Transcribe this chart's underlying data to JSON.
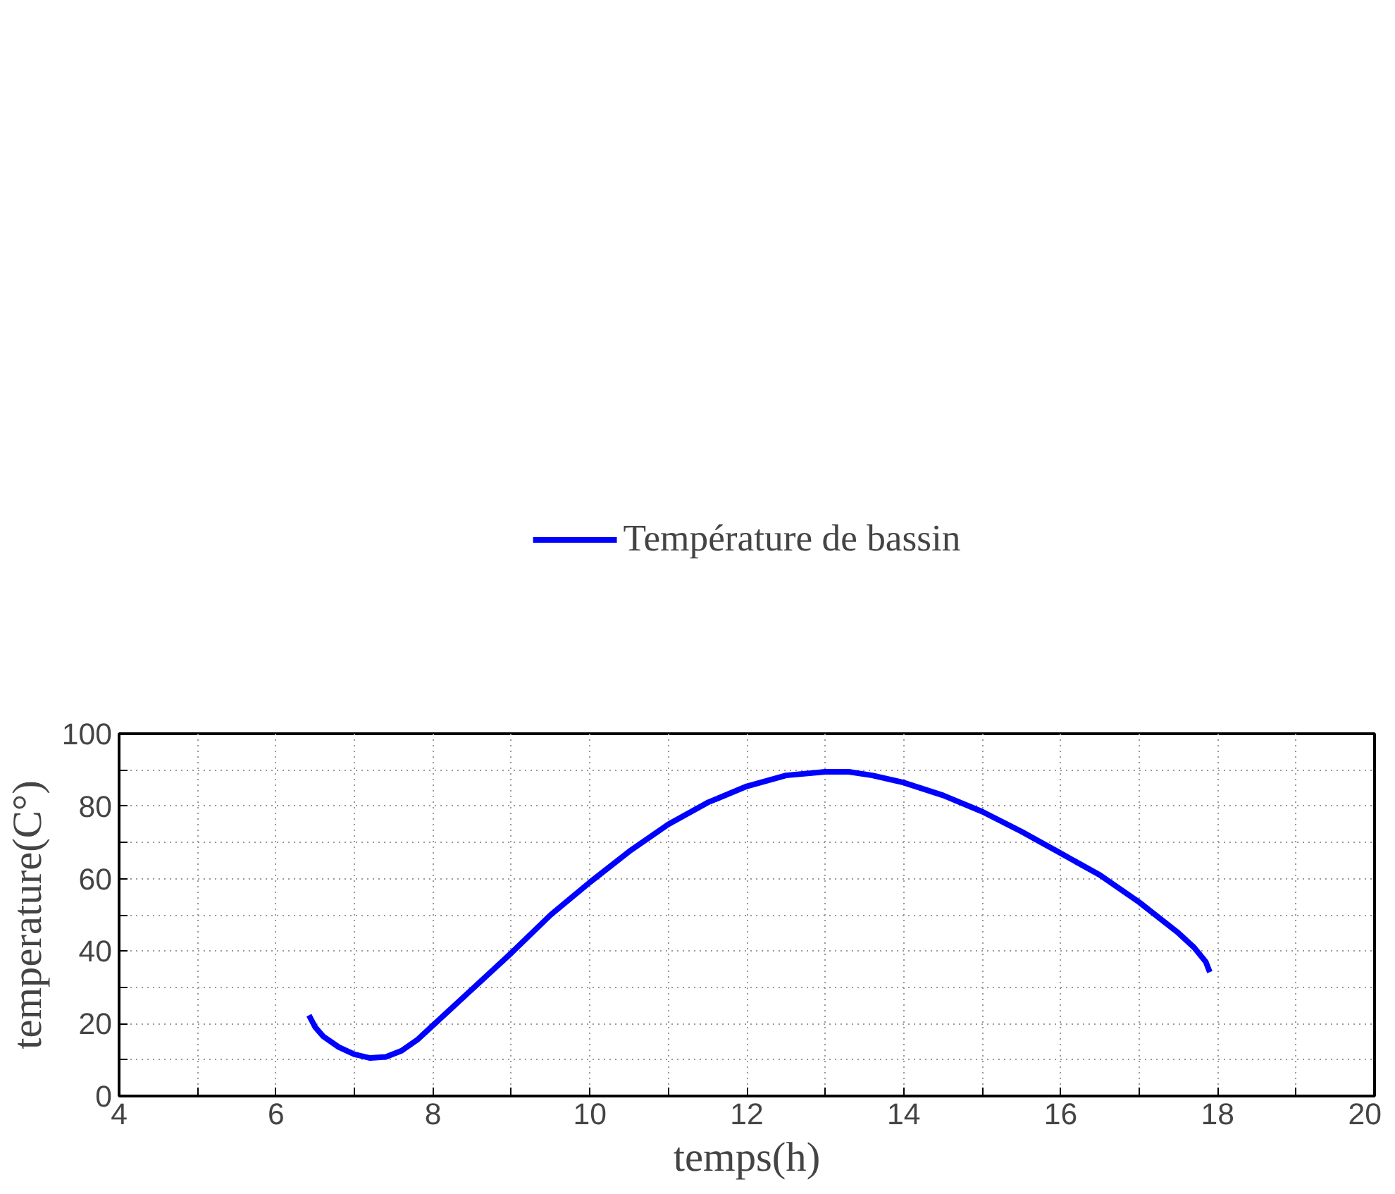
{
  "chart_data": {
    "type": "line",
    "xlabel": "temps(h)",
    "ylabel": "temperature(C°)",
    "xlim": [
      4,
      20
    ],
    "ylim": [
      0,
      100
    ],
    "xticks": [
      4,
      {
        "value": 5,
        "label": null
      },
      6,
      {
        "value": 7,
        "label": null
      },
      8,
      {
        "value": 9,
        "label": null
      },
      10,
      {
        "value": 11,
        "label": null
      },
      12,
      {
        "value": 13,
        "label": null
      },
      14,
      {
        "value": 15,
        "label": null
      },
      16,
      {
        "value": 17,
        "label": null
      },
      18,
      {
        "value": 19,
        "label": null
      },
      20
    ],
    "yticks": [
      0,
      {
        "value": 10,
        "label": null
      },
      20,
      {
        "value": 30,
        "label": null
      },
      40,
      {
        "value": 50,
        "label": null
      },
      60,
      {
        "value": 70,
        "label": null
      },
      80,
      {
        "value": 90,
        "label": null
      },
      100
    ],
    "grid": true,
    "legend": "top",
    "line_style": "solid",
    "series": [
      {
        "name": "Température de bassin",
        "color": "#0000ff",
        "x": [
          6.42,
          6.5,
          6.6,
          6.8,
          7.0,
          7.2,
          7.4,
          7.6,
          7.8,
          8.0,
          8.5,
          9.0,
          9.5,
          10,
          10.5,
          11,
          11.5,
          12,
          12.5,
          13,
          13.3,
          13.6,
          14,
          14.5,
          15,
          15.5,
          16,
          16.5,
          17,
          17.5,
          17.7,
          17.85,
          17.9
        ],
        "values": [
          22.3,
          19,
          16.5,
          13.5,
          11.5,
          10.5,
          10.8,
          12.5,
          15.5,
          19.5,
          29.5,
          39.5,
          50,
          59,
          67.5,
          75,
          81,
          85.5,
          88.5,
          89.5,
          89.5,
          88.5,
          86.5,
          83,
          78.5,
          73,
          67,
          61,
          53.5,
          45,
          41,
          37,
          34.2
        ]
      }
    ]
  }
}
